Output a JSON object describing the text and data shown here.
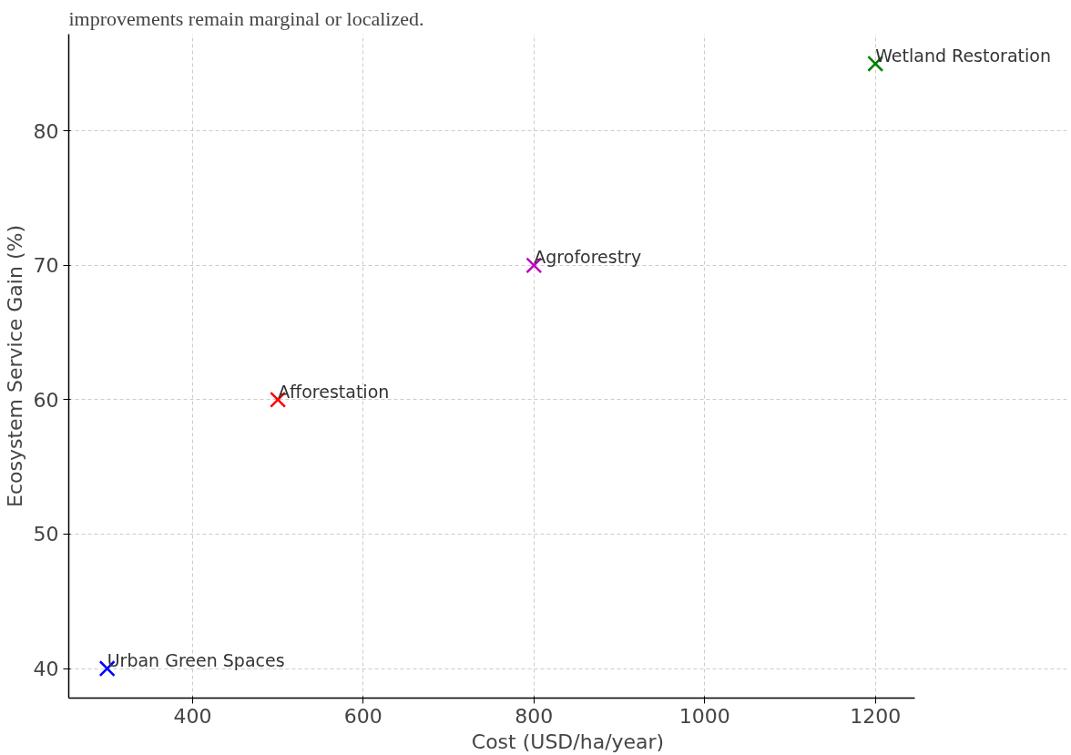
{
  "chart_data": {
    "type": "scatter",
    "subtitle": "improvements remain marginal or localized.",
    "xlabel": "Cost (USD/ha/year)",
    "ylabel": "Ecosystem Service Gain (%)",
    "x": [
      300,
      500,
      800,
      1200
    ],
    "values": [
      40,
      60,
      70,
      85
    ],
    "colors": [
      "#0000ff",
      "#ff0000",
      "#bf00bf",
      "#008000"
    ],
    "marker": "cross",
    "annotations": [
      {
        "text": "Urban Green Spaces",
        "x": 300,
        "y": 40
      },
      {
        "text": "Afforestation",
        "x": 500,
        "y": 60
      },
      {
        "text": "Agroforestry",
        "x": 800,
        "y": 70
      },
      {
        "text": "Wetland Restoration",
        "x": 1200,
        "y": 85
      }
    ],
    "xlim": [
      255,
      1246
    ],
    "ylim": [
      37.8,
      87.2
    ],
    "xticks": [
      400,
      600,
      800,
      1000,
      1200
    ],
    "yticks": [
      40,
      50,
      60,
      70,
      80
    ],
    "grid": true
  }
}
